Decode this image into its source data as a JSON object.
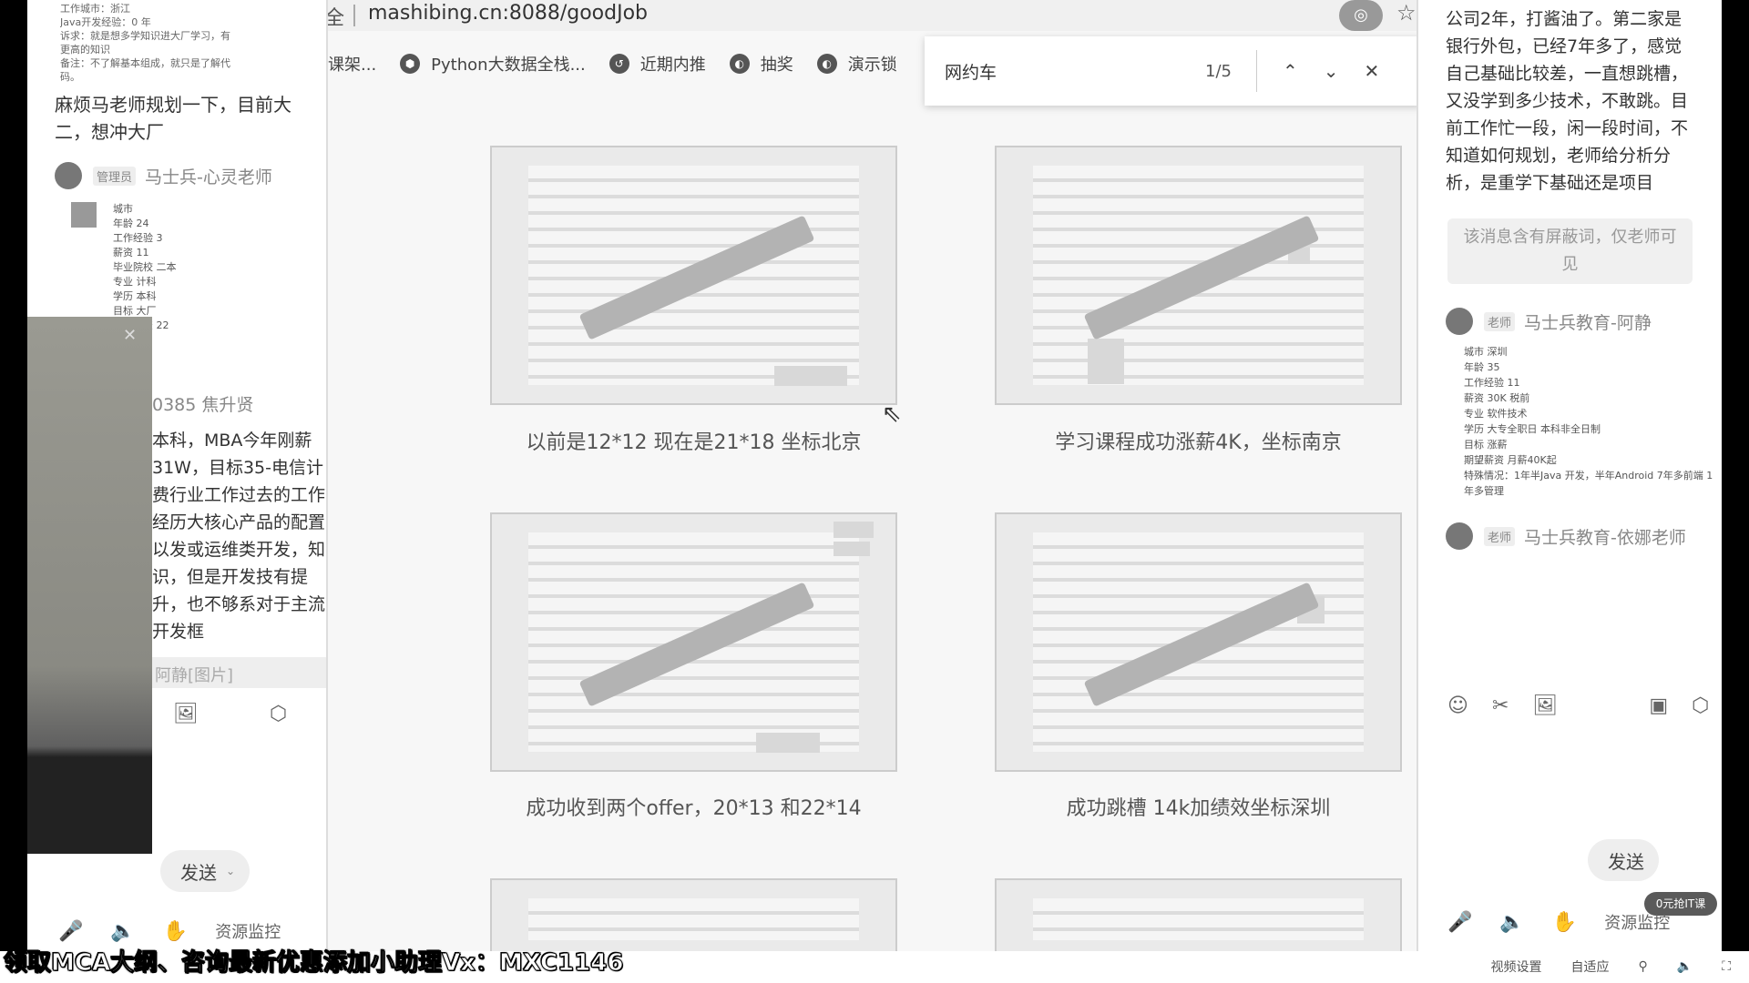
{
  "left_chat": {
    "tiny_lines": [
      "工作城市：浙江",
      "Java开发经验：0 年",
      "诉求：就是想多学知识进大厂学习，有",
      "更高的知识",
      "备注：不了解基本组成，就只是了解代",
      "码。"
    ],
    "msg1": "麻烦马老师规划一下，目前大二，想冲大厂",
    "sender1_role": "管理员",
    "sender1_name": "马士兵-心灵老师",
    "info_lines": [
      "城市",
      "年龄 24",
      "工作经验 3",
      "薪资 11",
      "毕业院校 二本",
      "专业 计科",
      "学历 本科",
      "目标 大厂",
      "期望薪资 22"
    ],
    "msg2_head": "0385 焦升贤",
    "msg2_body": "本科，MBA今年刚薪31W，目标35-电信计费行业工作过去的工作经历大核心产品的配置以发或运维类开发，知识，但是开发技有提升，也不够系对于主流开发框",
    "separator_text": "阿静[图片]",
    "send_label": "发送",
    "resource_label": "资源监控"
  },
  "browser": {
    "secure_prefix": "全",
    "url": "mashibing.cn:8088/goodJob",
    "bookmarks": [
      "课架...",
      "Python大数据全栈...",
      "近期内推",
      "抽奖",
      "演示锁"
    ],
    "find": {
      "query": "网约车",
      "count": "1/5"
    },
    "captions": [
      "以前是12*12 现在是21*18 坐标北京",
      "学习课程成功涨薪4K，坐标南京",
      "成功收到两个offer，20*13 和22*14",
      "成功跳槽 14k加绩效坐标深圳"
    ]
  },
  "right_chat": {
    "msg": "公司2年，打酱油了。第二家是银行外包，已经7年多了，感觉自己基础比较差，一直想跳槽，又没学到多少技术，不敢跳。目前工作忙一段，闲一段时间，不知道如何规划，老师给分析分析，是重学下基础还是项目",
    "blocked_note": "该消息含有屏蔽词，仅老师可见",
    "sender1_role": "老师",
    "sender1_name": "马士兵教育-阿静",
    "info_lines": [
      "城市 深圳",
      "年龄 35",
      "工作经验 11",
      "薪资 30K 税前",
      "专业 软件技术",
      "学历 大专全职日 本科非全日制",
      "目标 涨薪",
      "期望薪资 月薪40K起",
      "特殊情况：1年半Java 开发，半年Android 7年多前端 1年多管理"
    ],
    "sender2_role": "老师",
    "sender2_name": "马士兵教育-依娜老师",
    "send_label": "发送",
    "resource_label": "资源监控",
    "promo": "0元抢IT课"
  },
  "footer": {
    "watermark": "领取MCA大纲、咨询最新优惠添加小助理Vx：MXC1146",
    "video_settings": "视频设置",
    "fit": "自适应"
  }
}
